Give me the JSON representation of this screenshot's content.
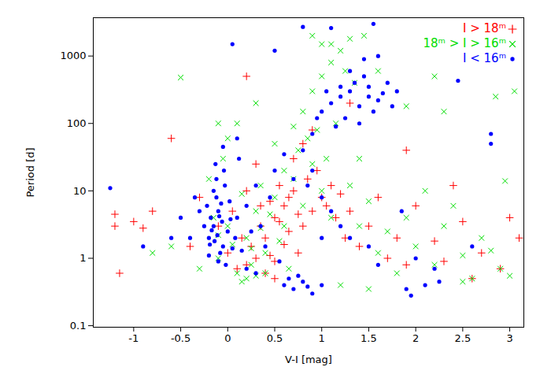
{
  "chart_data": {
    "type": "scatter",
    "x_label": "V-I [mag]",
    "y_label": "Period [d]",
    "xlim": [
      -1.43,
      3.15
    ],
    "ylim": [
      0.095,
      3700
    ],
    "xticks": [
      -1,
      -0.5,
      0,
      0.5,
      1,
      1.5,
      2,
      2.5,
      3
    ],
    "yticks": [
      0.1,
      1,
      10,
      100,
      1000
    ],
    "log": "y",
    "grid": false,
    "legend": "top-right",
    "series": [
      {
        "name": "I > 18ᵐ",
        "color": "#ff0000",
        "marker": "plus",
        "x": [
          0.3,
          0.4,
          0.5,
          0.6,
          0.7,
          0.8,
          0.9,
          1.0,
          0.2,
          0.25,
          0.35,
          0.45,
          0.55,
          0.65,
          0.75,
          0.85,
          0.95,
          1.05,
          1.15,
          1.25,
          0.1,
          0.15,
          0,
          -0.1,
          0.05,
          0.5,
          0.6,
          0.4,
          0.7,
          0.8,
          0.3,
          0.2,
          1.1,
          1.2,
          1.3,
          0.45,
          0.55,
          0.65,
          0.75,
          0.35,
          -1.2,
          -1.2,
          -1.15,
          -1.0,
          -0.9,
          -0.8,
          -0.6,
          -0.4,
          -0.3,
          1.4,
          1.5,
          1.6,
          1.7,
          1.8,
          1.9,
          2.0,
          2.2,
          2.3,
          2.5,
          2.7,
          2.9,
          3.1,
          3.0,
          2.6,
          2.4,
          1.9,
          0.2,
          0.9,
          1.3,
          0.5
        ],
        "values": [
          1,
          2,
          4,
          6,
          10,
          3,
          5,
          8,
          0.8,
          1.5,
          3,
          7,
          12,
          2.5,
          1.2,
          15,
          20,
          6,
          4,
          2,
          0.7,
          2,
          1.2,
          3,
          5,
          0.9,
          1.6,
          0.6,
          30,
          50,
          25,
          10,
          12,
          9,
          5,
          1.1,
          3.5,
          8,
          4.5,
          6,
          4.5,
          3,
          0.6,
          3.5,
          2.8,
          5,
          60,
          1.5,
          8,
          1.5,
          3,
          8,
          1,
          2,
          0.8,
          6,
          1.8,
          0.9,
          3.5,
          1.2,
          0.7,
          2,
          4,
          0.5,
          12,
          40,
          500,
          80,
          200,
          0.5
        ]
      },
      {
        "name": "18ᵐ > I > 16ᵐ",
        "color": "#00dd00",
        "marker": "times",
        "x": [
          -0.1,
          0,
          0.1,
          0.2,
          0.3,
          0.4,
          0.5,
          0.6,
          0.7,
          0.8,
          0.9,
          1.0,
          1.1,
          0.05,
          0.15,
          0.25,
          0.35,
          0.45,
          0.55,
          0.65,
          0.75,
          0.85,
          0.95,
          1.05,
          1.15,
          0.8,
          0.9,
          1.0,
          1.1,
          1.2,
          1.3,
          1.0,
          0.9,
          1.25,
          1.35,
          0.7,
          0.6,
          0.5,
          -0.2,
          -0.15,
          -0.05,
          0,
          0.1,
          -0.1,
          0.2,
          0.3,
          0.4,
          0.15,
          0.25,
          0.35,
          -0.5,
          -0.3,
          -0.6,
          -0.8,
          1.3,
          1.4,
          1.5,
          1.6,
          1.7,
          1.8,
          1.9,
          2.0,
          2.1,
          2.2,
          2.3,
          2.4,
          2.5,
          2.6,
          2.7,
          2.8,
          2.9,
          3.0,
          2.95,
          2.85,
          3.05,
          2.2,
          2.3,
          1.9,
          1.6,
          1.4,
          1.2,
          1.5,
          2.5,
          1.1,
          1.45,
          0.3,
          -0.1
        ],
        "values": [
          1,
          3,
          0.6,
          2,
          5,
          1.2,
          8,
          3,
          15,
          6,
          25,
          10,
          4,
          1.6,
          9,
          0.8,
          2.8,
          4.5,
          1.8,
          0.7,
          40,
          60,
          80,
          30,
          100,
          150,
          300,
          500,
          800,
          1200,
          1800,
          1500,
          2000,
          600,
          400,
          90,
          20,
          50,
          15,
          4,
          30,
          60,
          100,
          2.2,
          0.5,
          0.55,
          0.6,
          0.45,
          1.4,
          12,
          480,
          0.7,
          1.5,
          1.2,
          12,
          3,
          7,
          1.2,
          2.5,
          0.6,
          4,
          1.5,
          10,
          0.8,
          3,
          6,
          1.1,
          0.5,
          2,
          1.3,
          0.7,
          0.55,
          14,
          250,
          300,
          500,
          150,
          180,
          600,
          30,
          0.4,
          0.35,
          0.45,
          1500,
          2000,
          200,
          100
        ]
      },
      {
        "name": "I < 16ᵐ",
        "color": "#0000ff",
        "marker": "circle",
        "x": [
          -0.2,
          -0.15,
          -0.1,
          -0.05,
          0,
          -0.12,
          -0.18,
          -0.08,
          -0.22,
          -0.03,
          -0.14,
          -0.1,
          -0.06,
          -0.17,
          0.02,
          -0.25,
          -0.12,
          -0.2,
          -0.04,
          -0.09,
          0.05,
          -0.15,
          -0.02,
          -0.3,
          -0.11,
          0.03,
          -0.07,
          -0.19,
          -0.13,
          0.08,
          0.1,
          0.15,
          0.2,
          0.25,
          -0.35,
          -0.4,
          0.3,
          0.12,
          -0.05,
          0.1,
          0.2,
          -0.5,
          0.35,
          0.45,
          0.5,
          0.6,
          0.7,
          0.4,
          0.55,
          0.3,
          0.6,
          0.7,
          0.8,
          0.9,
          0.75,
          0.65,
          1.0,
          0.85,
          0.8,
          0.9,
          1.0,
          1.1,
          1.2,
          1.3,
          1.4,
          1.5,
          1.6,
          1.7,
          1.8,
          1.25,
          1.35,
          1.45,
          1.55,
          1.15,
          1.05,
          0.95,
          1.65,
          1.75,
          1.3,
          1.2,
          1.5,
          1.4,
          0.9,
          1.0,
          1.1,
          1.2,
          0.85,
          1.3,
          1.5,
          1.6,
          1.0,
          -1.25,
          -0.9,
          -0.6,
          0.05,
          0.8,
          1.1,
          1.55,
          1.95,
          1.9,
          2.1,
          2.25,
          2.6,
          2.8,
          2.8,
          2.2,
          1.85,
          2.0,
          2.45,
          1.6,
          1.45,
          0.5
        ],
        "values": [
          2,
          3,
          5,
          1.5,
          2.5,
          8,
          4,
          1.2,
          6,
          12,
          1.8,
          0.9,
          3.5,
          2.6,
          7,
          3,
          15,
          1.1,
          20,
          4.2,
          1.4,
          10,
          0.8,
          5,
          2.2,
          3.8,
          6.5,
          1.6,
          25,
          2,
          4,
          1.3,
          6,
          2.5,
          8,
          2,
          12,
          30,
          45,
          60,
          0.7,
          4,
          3,
          8,
          20,
          35,
          15,
          1.5,
          0.9,
          0.6,
          0.4,
          0.35,
          0.45,
          0.3,
          0.55,
          0.5,
          0.4,
          0.38,
          40,
          70,
          150,
          200,
          250,
          300,
          180,
          350,
          220,
          400,
          300,
          120,
          400,
          500,
          150,
          90,
          300,
          120,
          280,
          180,
          600,
          350,
          250,
          100,
          20,
          8,
          5,
          3,
          12,
          2,
          1.5,
          0.8,
          2,
          11,
          1.5,
          2,
          1500,
          2700,
          2600,
          3000,
          0.28,
          0.35,
          0.4,
          0.45,
          1.5,
          50,
          70,
          0.7,
          5,
          1,
          430,
          1000,
          900,
          1200
        ]
      }
    ]
  }
}
